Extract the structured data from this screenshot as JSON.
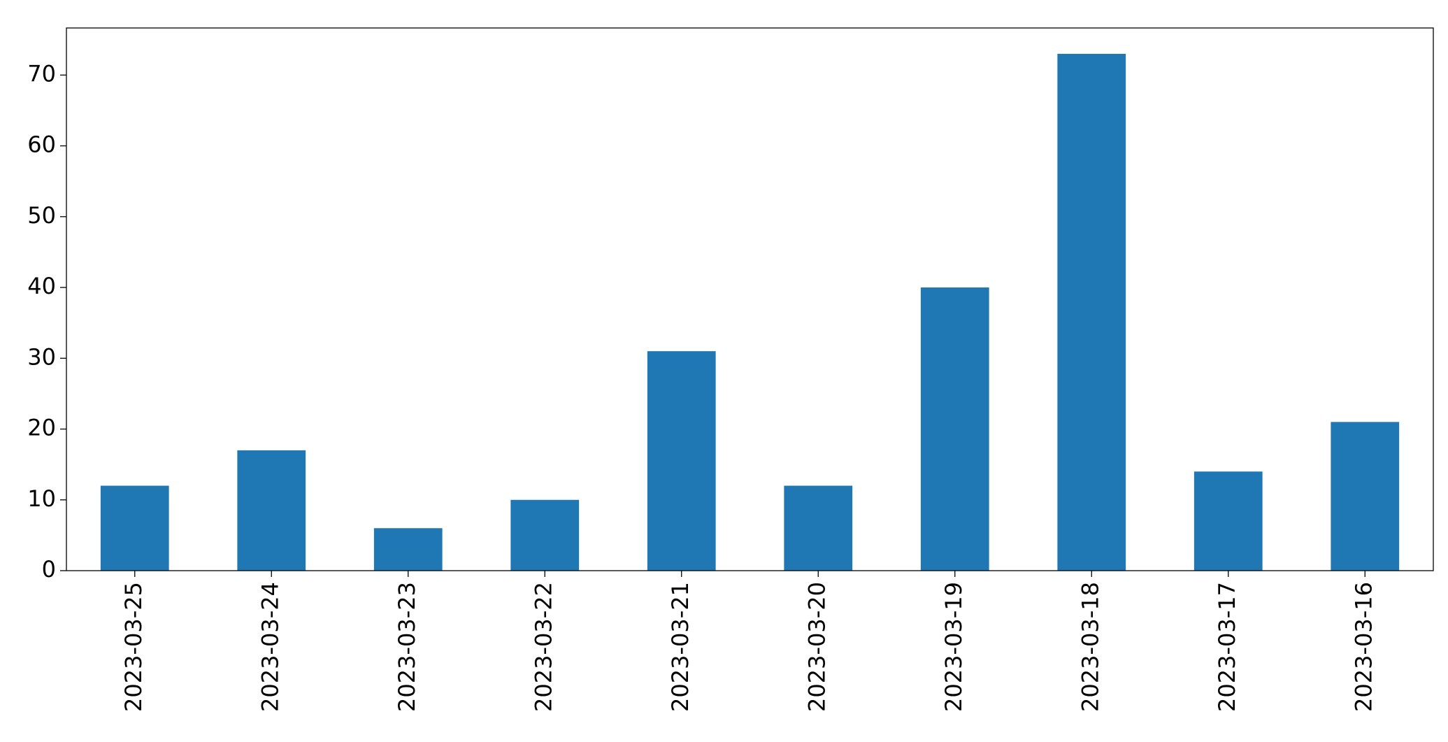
{
  "chart_data": {
    "type": "bar",
    "categories": [
      "2023-03-25",
      "2023-03-24",
      "2023-03-23",
      "2023-03-22",
      "2023-03-21",
      "2023-03-20",
      "2023-03-19",
      "2023-03-18",
      "2023-03-17",
      "2023-03-16"
    ],
    "values": [
      12,
      17,
      6,
      10,
      31,
      12,
      40,
      73,
      14,
      21
    ],
    "color": "#1f77b4",
    "ylim": [
      0,
      76.65
    ],
    "yticks": [
      0,
      10,
      20,
      30,
      40,
      50,
      60,
      70
    ],
    "grid": false
  }
}
